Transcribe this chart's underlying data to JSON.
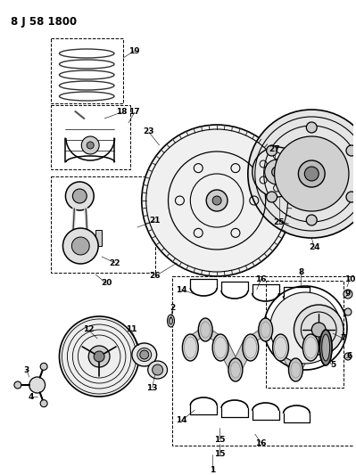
{
  "title": "8 J 58 1800",
  "bg_color": "#ffffff",
  "fig_width": 3.99,
  "fig_height": 5.33,
  "dpi": 100
}
